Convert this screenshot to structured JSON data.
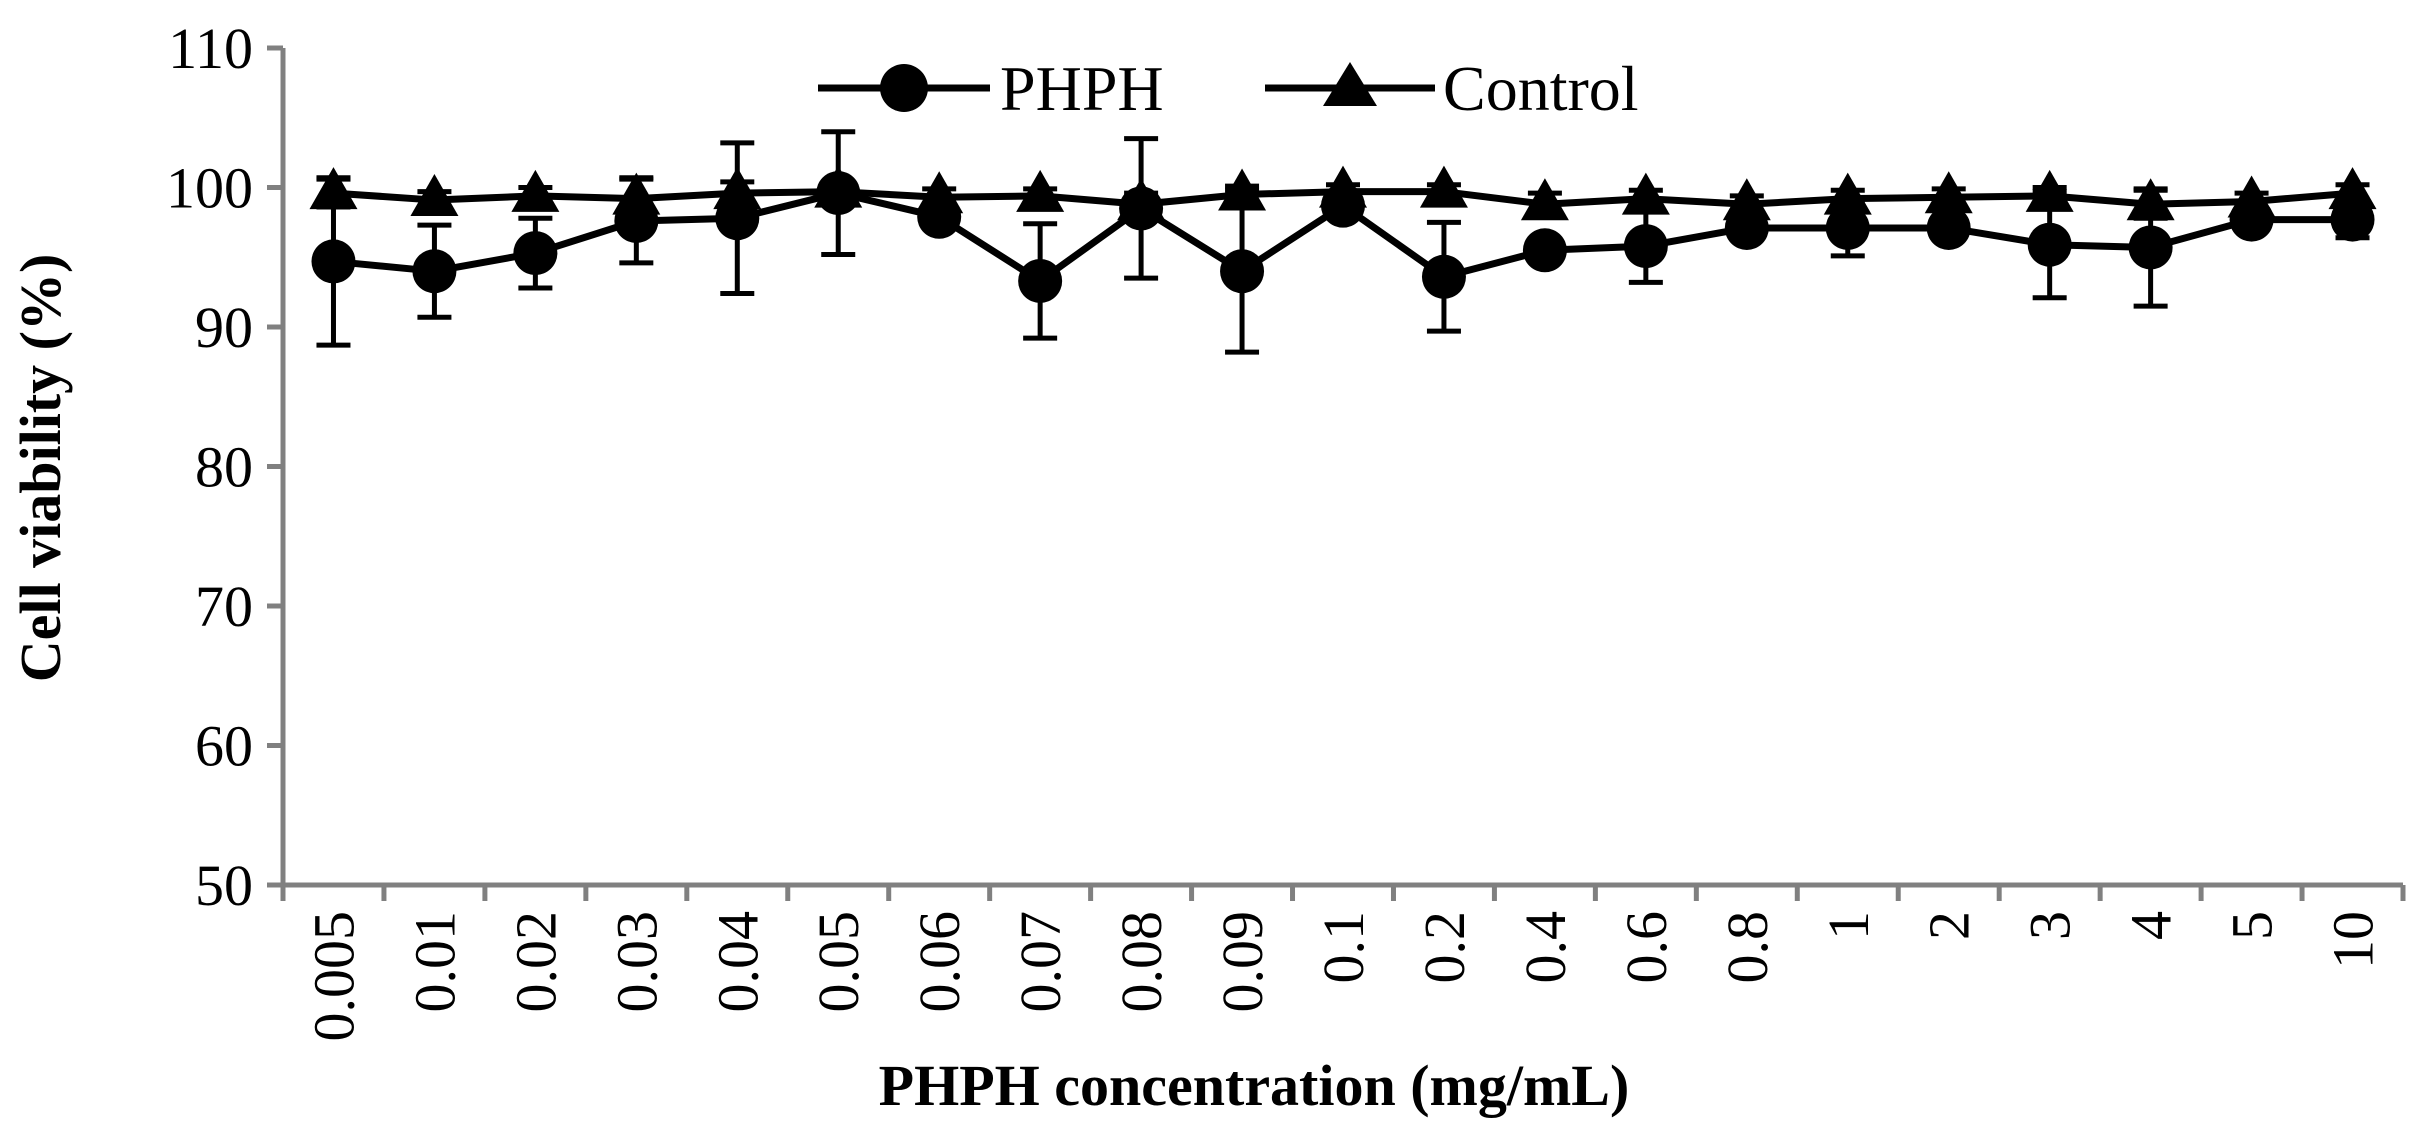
{
  "chart_data": {
    "type": "line",
    "xlabel": "PHPH concentration (mg/mL)",
    "ylabel": "Cell viability (%)",
    "ylim": [
      50,
      110
    ],
    "yticks": [
      50,
      60,
      70,
      80,
      90,
      100,
      110
    ],
    "categories": [
      "0.005",
      "0.01",
      "0.02",
      "0.03",
      "0.04",
      "0.05",
      "0.06",
      "0.07",
      "0.08",
      "0.09",
      "0.1",
      "0.2",
      "0.4",
      "0.6",
      "0.8",
      "1",
      "2",
      "3",
      "4",
      "5",
      "10"
    ],
    "legend_position": "top-center",
    "series": [
      {
        "name": "PHPH",
        "marker": "circle",
        "values": [
          94.7,
          94.0,
          95.3,
          97.6,
          97.8,
          99.6,
          97.9,
          93.3,
          98.5,
          94.0,
          98.7,
          93.6,
          95.5,
          95.8,
          97.1,
          97.1,
          97.1,
          95.9,
          95.7,
          97.7,
          97.7
        ],
        "errors": [
          6.0,
          3.3,
          2.5,
          3.0,
          5.4,
          4.4,
          0.8,
          4.1,
          5.0,
          5.8,
          0.8,
          3.9,
          0.8,
          2.6,
          0.6,
          2.0,
          0.8,
          3.8,
          4.2,
          0.8,
          1.3
        ]
      },
      {
        "name": "Control",
        "marker": "triangle",
        "values": [
          99.6,
          99.1,
          99.4,
          99.2,
          99.6,
          99.7,
          99.3,
          99.4,
          98.8,
          99.5,
          99.7,
          99.7,
          98.8,
          99.2,
          98.8,
          99.2,
          99.3,
          99.4,
          98.8,
          99.0,
          99.6
        ],
        "errors": [
          1.0,
          0.6,
          0.6,
          1.5,
          0.8,
          0.4,
          0.6,
          0.5,
          0.8,
          0.6,
          0.5,
          0.5,
          0.8,
          0.6,
          0.6,
          0.6,
          0.6,
          0.6,
          1.0,
          0.6,
          0.6
        ]
      }
    ],
    "colors": {
      "line": "#000000",
      "axis": "#808080"
    }
  }
}
